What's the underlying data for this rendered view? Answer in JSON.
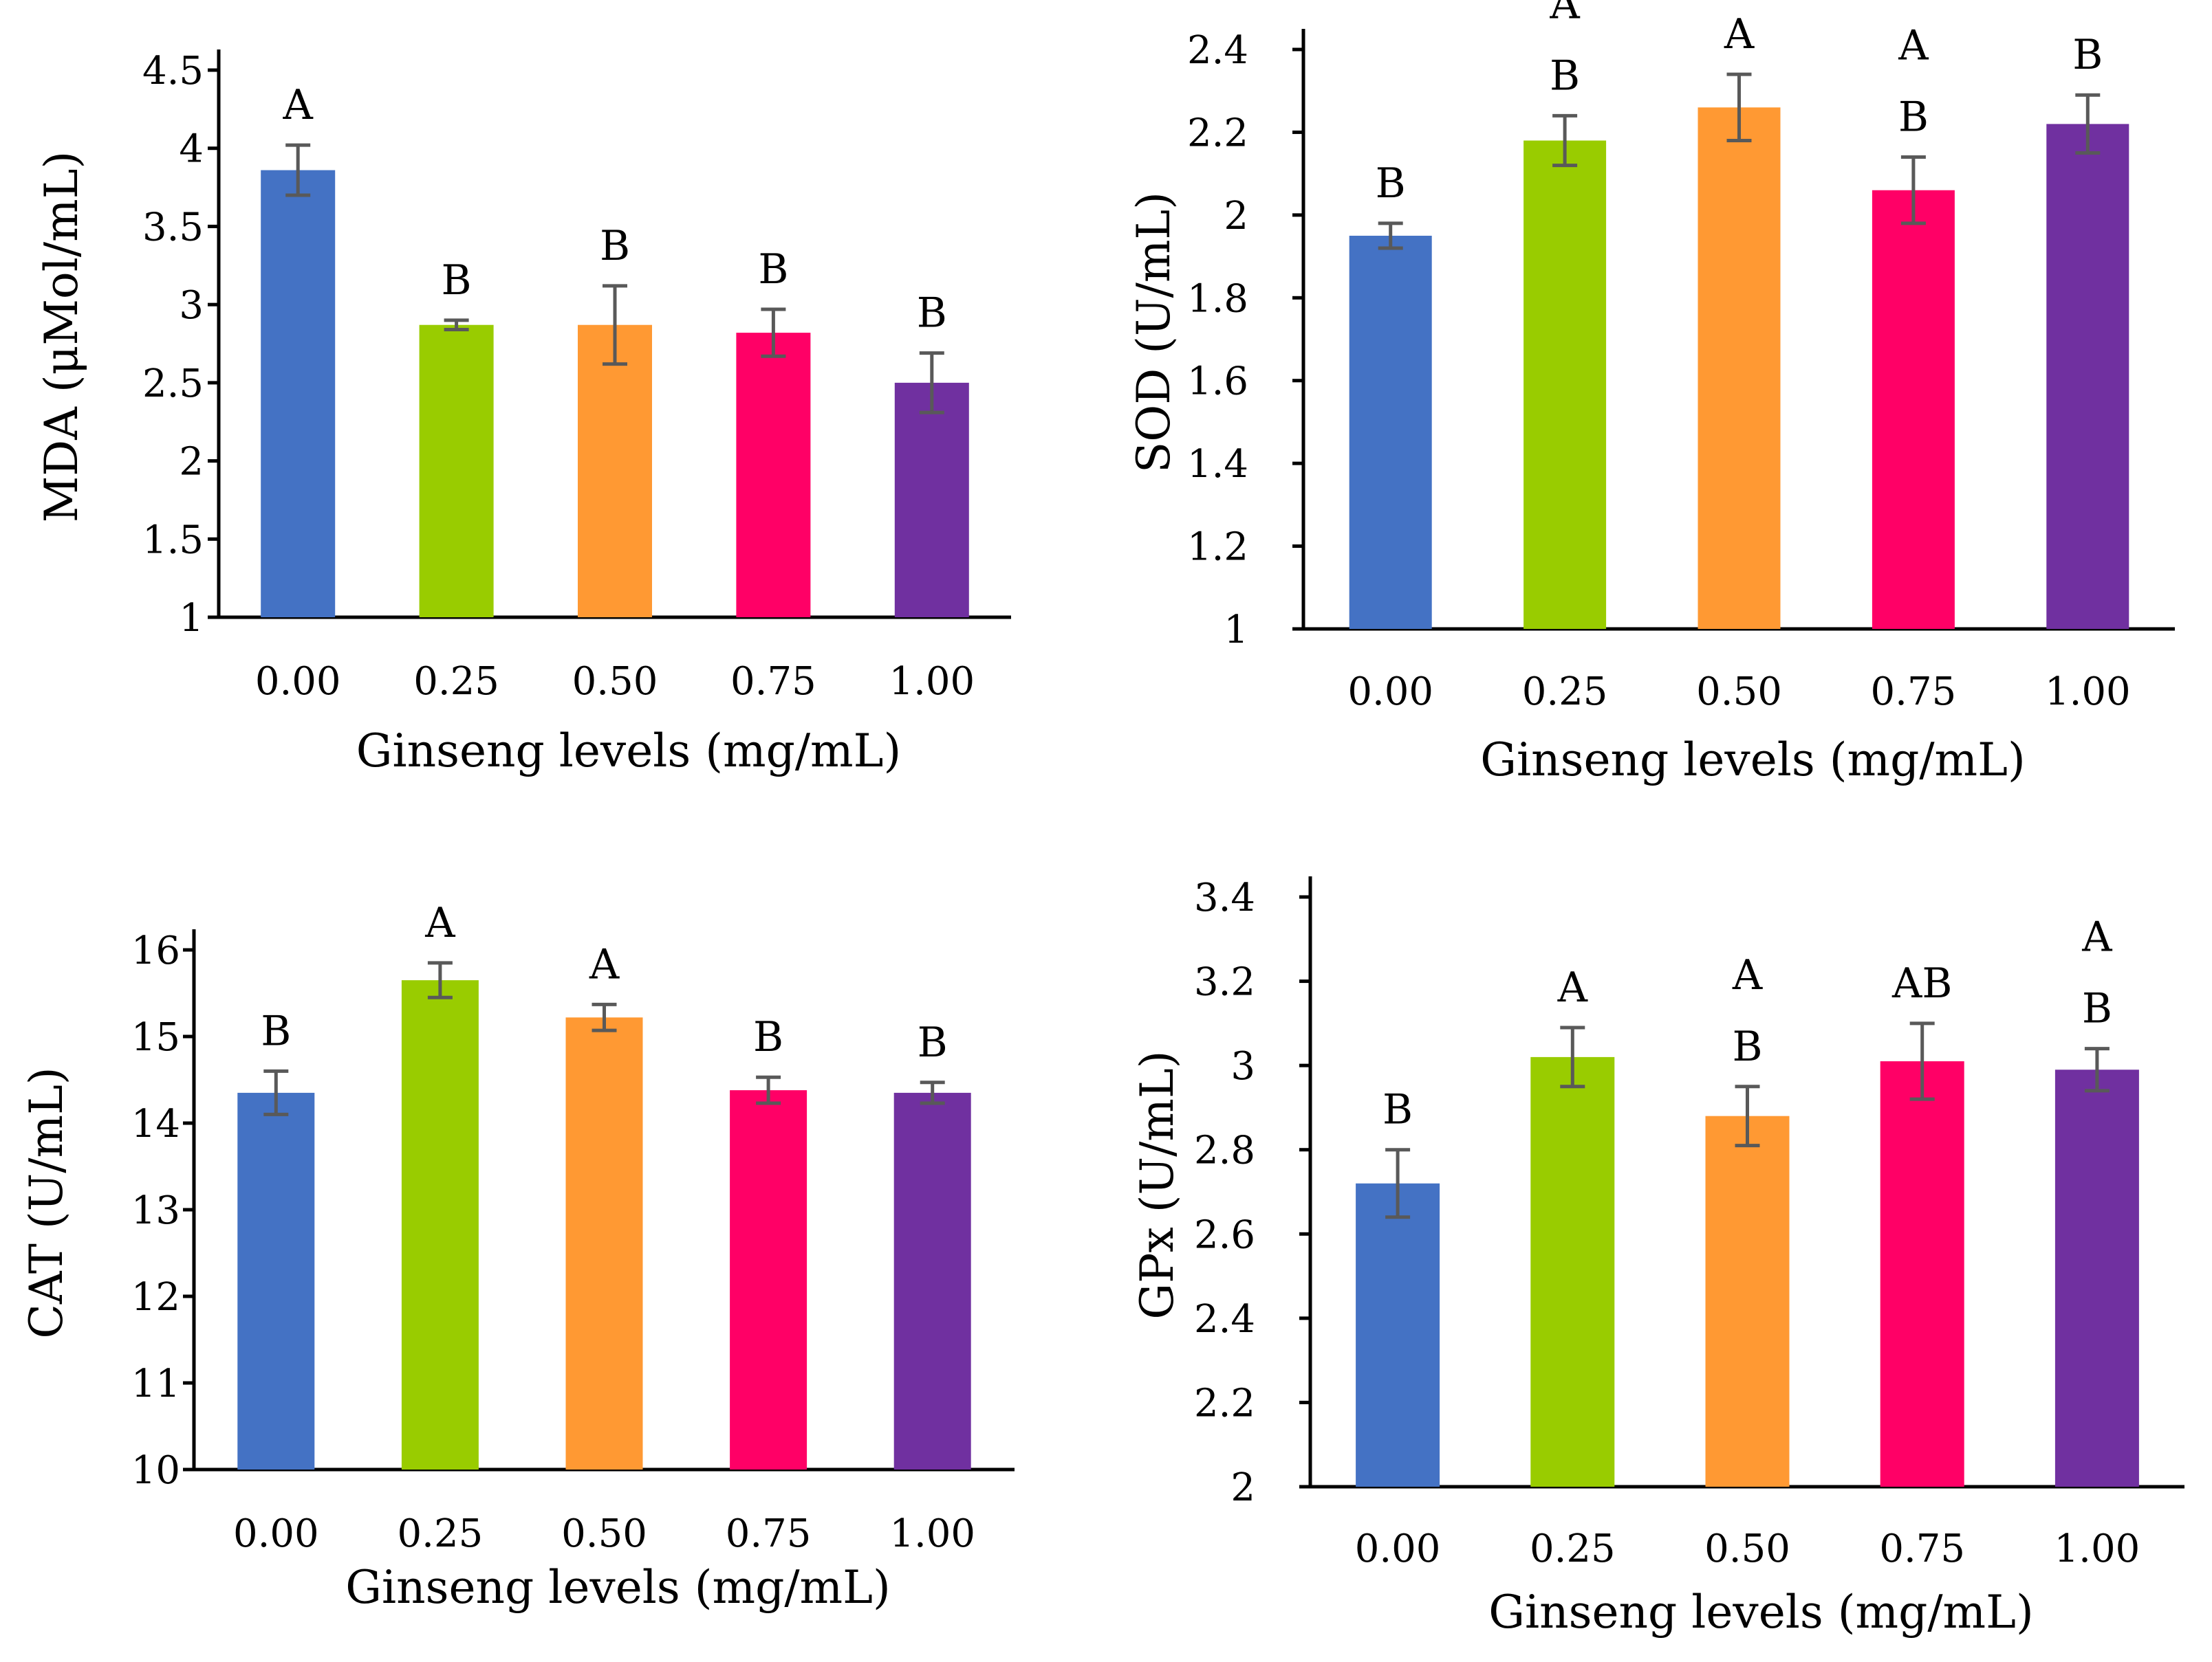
{
  "chart_data": [
    {
      "type": "bar",
      "title": "",
      "xlabel": "Ginseng levels (mg/mL)",
      "ylabel": "MDA (μMol/mL)",
      "categories": [
        "0.00",
        "0.25",
        "0.50",
        "0.75",
        "1.00"
      ],
      "values": [
        3.86,
        2.87,
        2.87,
        2.82,
        2.5
      ],
      "errors": [
        0.16,
        0.03,
        0.25,
        0.15,
        0.19
      ],
      "sig_labels": [
        "A",
        "B",
        "B",
        "B",
        "B"
      ],
      "ylim": [
        1,
        4.5
      ],
      "yticks": [
        1,
        1.5,
        2,
        2.5,
        3,
        3.5,
        4,
        4.5
      ],
      "ytick_labels": [
        "1",
        "1.5",
        "2",
        "2.5",
        "3",
        "3.5",
        "4",
        "4.5"
      ],
      "colors": [
        "#4472C4",
        "#99CC00",
        "#FF9933",
        "#FF0066",
        "#7030A0"
      ]
    },
    {
      "type": "bar",
      "title": "",
      "xlabel": "Ginseng levels (mg/mL)",
      "ylabel": "SOD (U/mL)",
      "categories": [
        "0.00",
        "0.25",
        "0.50",
        "0.75",
        "1.00"
      ],
      "values": [
        1.95,
        2.18,
        2.26,
        2.06,
        2.22
      ],
      "errors": [
        0.03,
        0.06,
        0.08,
        0.08,
        0.07
      ],
      "sig_labels": [
        "B",
        "A\nB",
        "A",
        "A\nB",
        "A\nB"
      ],
      "ylim": [
        1,
        2.5
      ],
      "yticks": [
        1,
        1.2,
        1.4,
        1.6,
        1.8,
        2,
        2.2,
        2.4
      ],
      "ytick_labels": [
        "1",
        "1.2",
        "1.4",
        "1.6",
        "1.8",
        "2",
        "2.2",
        "2.4"
      ],
      "colors": [
        "#4472C4",
        "#99CC00",
        "#FF9933",
        "#FF0066",
        "#7030A0"
      ]
    },
    {
      "type": "bar",
      "title": "",
      "xlabel": "Ginseng levels (mg/mL)",
      "ylabel": "CAT (U/mL)",
      "categories": [
        "0.00",
        "0.25",
        "0.50",
        "0.75",
        "1.00"
      ],
      "values": [
        14.35,
        15.65,
        15.22,
        14.38,
        14.35
      ],
      "errors": [
        0.25,
        0.2,
        0.15,
        0.15,
        0.12
      ],
      "sig_labels": [
        "B",
        "A",
        "A",
        "B",
        "B"
      ],
      "ylim": [
        10,
        16
      ],
      "yticks": [
        10,
        11,
        12,
        13,
        14,
        15,
        16
      ],
      "ytick_labels": [
        "10",
        "11",
        "12",
        "13",
        "14",
        "15",
        "16"
      ],
      "colors": [
        "#4472C4",
        "#99CC00",
        "#FF9933",
        "#FF0066",
        "#7030A0"
      ]
    },
    {
      "type": "bar",
      "title": "",
      "xlabel": "Ginseng levels (mg/mL)",
      "ylabel": "GPx (U/mL)",
      "categories": [
        "0.00",
        "0.25",
        "0.50",
        "0.75",
        "1.00"
      ],
      "values": [
        2.72,
        3.02,
        2.88,
        3.01,
        2.99
      ],
      "errors": [
        0.08,
        0.07,
        0.07,
        0.09,
        0.05
      ],
      "sig_labels": [
        "B",
        "A",
        "A\nB",
        "AB",
        "A\nB"
      ],
      "ylim": [
        2,
        3.5
      ],
      "yticks": [
        2,
        2.2,
        2.4,
        2.6,
        2.8,
        3,
        3.2,
        3.4
      ],
      "ytick_labels": [
        "2",
        "2.2",
        "2.4",
        "2.6",
        "2.8",
        "3",
        "3.2",
        "3.4"
      ],
      "colors": [
        "#4472C4",
        "#99CC00",
        "#FF9933",
        "#FF0066",
        "#7030A0"
      ]
    }
  ]
}
